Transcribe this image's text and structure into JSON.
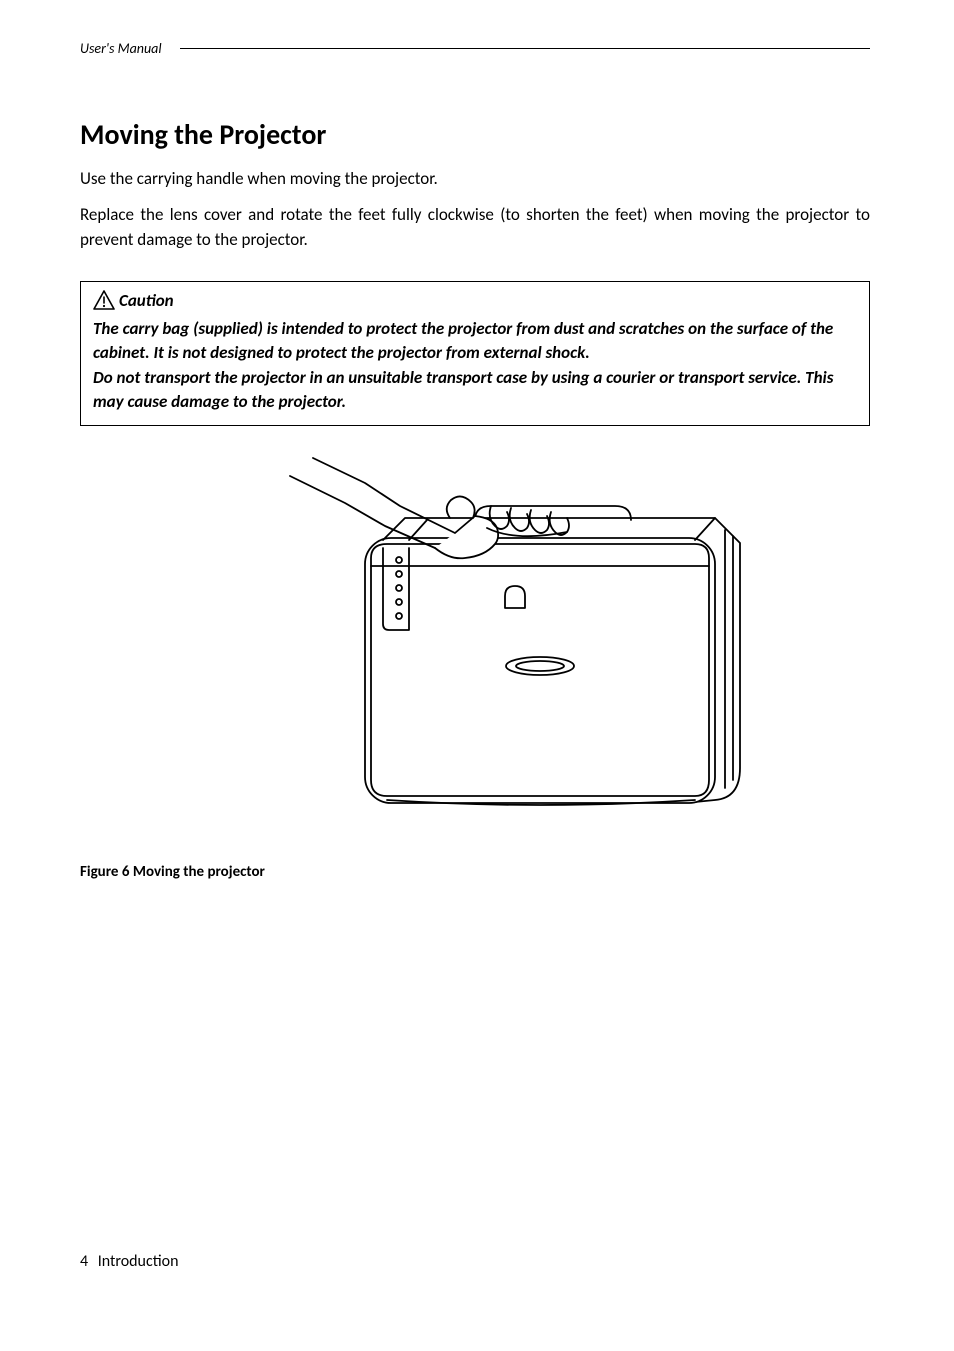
{
  "header": {
    "label": "User's Manual"
  },
  "section": {
    "title": "Moving the Projector",
    "para1": "Use the carrying handle when moving the projector.",
    "para2": "Replace the lens cover and rotate the feet fully clockwise (to shorten the feet) when moving the projector to prevent damage to the projector."
  },
  "caution": {
    "label": "Caution",
    "body": "The carry bag (supplied) is intended to protect the projector from dust and scratches on the surface of the cabinet. It is not designed to protect the projector from external shock.\nDo not transport the projector in an unsuitable transport case by using a courier or transport service. This may cause damage to the projector."
  },
  "figure": {
    "caption": "Figure 6 Moving the projector",
    "stroke": "#000000",
    "fill": "#ffffff"
  },
  "footer": {
    "page_number": "4",
    "chapter": "Introduction"
  }
}
